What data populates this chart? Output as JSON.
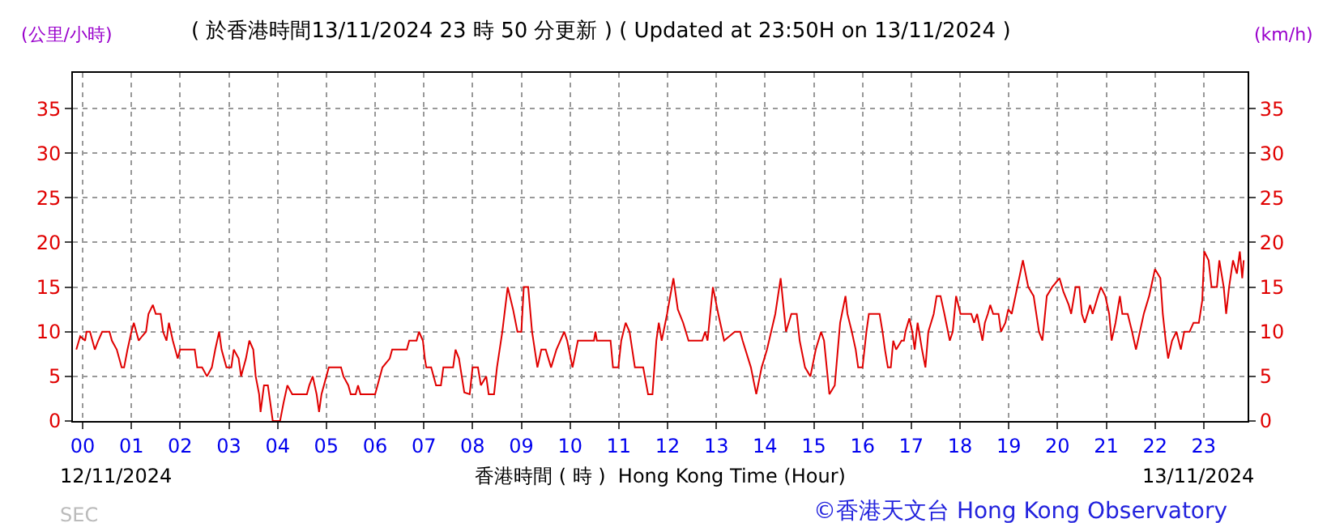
{
  "chart_data": {
    "type": "line",
    "title": "( 於香港時間13/11/2024 23 時 50 分更新 ) ( Updated at 23:50H on 13/11/2024 )",
    "xlabel": "香港時間 ( 時 )  Hong Kong Time (Hour)",
    "ylabel": "(公里/小時)",
    "y2label": "(km/h)",
    "annotations": [
      "12/11/2024",
      "13/11/2024",
      "SEC",
      "©香港天文台 Hong Kong Observatory"
    ],
    "xlim": [
      -0.2,
      23.9
    ],
    "xticks": [
      {
        "value": 0,
        "label": "00"
      },
      {
        "value": 1,
        "label": "01"
      },
      {
        "value": 2,
        "label": "02"
      },
      {
        "value": 3,
        "label": "03"
      },
      {
        "value": 4,
        "label": "04"
      },
      {
        "value": 5,
        "label": "05"
      },
      {
        "value": 6,
        "label": "06"
      },
      {
        "value": 7,
        "label": "07"
      },
      {
        "value": 8,
        "label": "08"
      },
      {
        "value": 9,
        "label": "09"
      },
      {
        "value": 10,
        "label": "10"
      },
      {
        "value": 11,
        "label": "11"
      },
      {
        "value": 12,
        "label": "12"
      },
      {
        "value": 13,
        "label": "13"
      },
      {
        "value": 14,
        "label": "14"
      },
      {
        "value": 15,
        "label": "15"
      },
      {
        "value": 16,
        "label": "16"
      },
      {
        "value": 17,
        "label": "17"
      },
      {
        "value": 18,
        "label": "18"
      },
      {
        "value": 19,
        "label": "19"
      },
      {
        "value": 20,
        "label": "20"
      },
      {
        "value": 21,
        "label": "21"
      },
      {
        "value": 22,
        "label": "22"
      },
      {
        "value": 23,
        "label": "23"
      }
    ],
    "ylim": [
      0,
      39
    ],
    "yticks": [
      0,
      5,
      10,
      15,
      20,
      25,
      30,
      35
    ],
    "y2lim": [
      0,
      39
    ],
    "y2ticks": [
      0,
      5,
      10,
      15,
      20,
      25,
      30,
      35
    ],
    "grid": true,
    "marker": "none",
    "line_style": "solid",
    "series": [
      {
        "color": "#e00000",
        "x": [
          -0.13,
          -0.05,
          0.05,
          0.08,
          0.15,
          0.2,
          0.25,
          0.32,
          0.4,
          0.55,
          0.6,
          0.7,
          0.75,
          0.8,
          0.85,
          0.92,
          1.0,
          1.05,
          1.1,
          1.15,
          1.22,
          1.3,
          1.35,
          1.44,
          1.5,
          1.6,
          1.65,
          1.72,
          1.77,
          1.85,
          1.9,
          1.95,
          2.0,
          2.3,
          2.35,
          2.45,
          2.55,
          2.65,
          2.72,
          2.8,
          2.85,
          2.95,
          3.05,
          3.1,
          3.2,
          3.25,
          3.35,
          3.42,
          3.5,
          3.55,
          3.62,
          3.65,
          3.72,
          3.8,
          3.85,
          3.9,
          3.95,
          4.05,
          4.12,
          4.2,
          4.3,
          4.6,
          4.65,
          4.72,
          4.8,
          4.85,
          4.9,
          5.0,
          5.05,
          5.3,
          5.35,
          5.45,
          5.5,
          5.6,
          5.65,
          5.7,
          6.0,
          6.05,
          6.15,
          6.3,
          6.35,
          6.65,
          6.7,
          6.85,
          6.9,
          6.98,
          7.02,
          7.05,
          7.15,
          7.25,
          7.35,
          7.4,
          7.6,
          7.65,
          7.72,
          7.83,
          7.94,
          8.0,
          8.11,
          8.17,
          8.28,
          8.33,
          8.44,
          8.5,
          8.61,
          8.72,
          8.83,
          8.92,
          9.0,
          9.05,
          9.14,
          9.22,
          9.33,
          9.41,
          9.5,
          9.61,
          9.72,
          9.88,
          9.94,
          10.05,
          10.16,
          10.49,
          10.52,
          10.55,
          10.83,
          10.88,
          10.99,
          11.05,
          11.14,
          11.22,
          11.33,
          11.5,
          11.6,
          11.69,
          11.77,
          11.82,
          11.88,
          11.99,
          12.12,
          12.21,
          12.32,
          12.43,
          12.71,
          12.77,
          12.82,
          12.93,
          13.04,
          13.16,
          13.38,
          13.49,
          13.54,
          13.71,
          13.82,
          13.93,
          14.04,
          14.21,
          14.32,
          14.43,
          14.54,
          14.65,
          14.71,
          14.82,
          14.93,
          15.04,
          15.15,
          15.21,
          15.32,
          15.43,
          15.54,
          15.65,
          15.69,
          15.78,
          15.86,
          15.91,
          16.0,
          16.08,
          16.13,
          16.35,
          16.41,
          16.46,
          16.52,
          16.58,
          16.63,
          16.69,
          16.8,
          16.85,
          16.88,
          16.96,
          17.02,
          17.07,
          17.13,
          17.22,
          17.29,
          17.35,
          17.46,
          17.52,
          17.6,
          17.68,
          17.79,
          17.85,
          17.92,
          18.01,
          18.23,
          18.29,
          18.35,
          18.46,
          18.51,
          18.57,
          18.62,
          18.68,
          18.79,
          18.84,
          18.93,
          18.99,
          19.06,
          19.29,
          19.4,
          19.51,
          19.62,
          19.69,
          19.78,
          19.89,
          20.04,
          20.12,
          20.23,
          20.28,
          20.37,
          20.45,
          20.5,
          20.56,
          20.67,
          20.72,
          20.83,
          20.89,
          20.98,
          21.06,
          21.11,
          21.19,
          21.28,
          21.33,
          21.44,
          21.53,
          21.61,
          21.69,
          21.77,
          21.88,
          22.0,
          22.11,
          22.16,
          22.22,
          22.27,
          22.35,
          22.44,
          22.53,
          22.6,
          22.71,
          22.79,
          22.9,
          22.97,
          23.01,
          23.1,
          23.16,
          23.27,
          23.32,
          23.41,
          23.46,
          23.52,
          23.6,
          23.68,
          23.74,
          23.79,
          23.82
        ],
        "values": [
          8,
          9.5,
          9,
          10,
          10,
          9,
          8,
          9,
          10,
          10,
          9,
          8,
          7,
          6,
          6,
          8,
          10,
          11,
          10,
          9,
          9.5,
          10,
          12,
          13,
          12,
          12,
          10,
          9,
          11,
          9,
          8,
          7,
          8,
          8,
          6,
          6,
          5,
          6,
          8,
          10,
          8,
          6,
          6,
          8,
          7,
          5,
          7,
          9,
          8,
          5,
          3,
          1,
          4,
          4,
          2,
          0,
          0,
          0,
          2,
          4,
          3,
          3,
          4,
          5,
          3,
          1,
          3,
          5,
          6,
          6,
          5,
          4,
          3,
          3,
          4,
          3,
          3,
          4,
          6,
          7,
          8,
          8,
          9,
          9,
          10,
          9,
          7,
          6,
          6,
          4,
          4,
          6,
          6,
          8,
          7,
          3.2,
          3,
          6,
          6,
          4,
          5,
          3,
          3,
          6,
          10,
          15,
          12.5,
          10,
          10,
          15,
          15,
          10,
          6,
          8,
          8,
          6,
          8,
          10,
          9,
          6,
          9,
          9,
          10,
          9,
          9,
          6,
          6,
          9,
          11,
          10,
          6,
          6,
          3,
          3,
          9,
          11,
          9,
          12,
          16,
          12.5,
          11,
          9,
          9,
          10,
          9,
          15,
          12,
          9,
          10,
          10,
          9,
          6,
          3,
          6,
          8,
          12,
          16,
          10,
          12,
          12,
          9,
          6,
          5,
          8,
          10,
          9,
          3,
          4,
          11,
          14,
          12,
          10,
          8,
          6,
          6,
          10,
          12,
          12,
          10,
          8,
          6,
          6,
          9,
          8,
          9,
          9,
          10,
          11.5,
          10,
          8,
          11,
          8,
          6,
          10,
          12,
          14,
          14,
          12,
          9,
          10,
          14,
          12,
          12,
          11,
          12,
          9,
          11,
          12,
          13,
          12,
          12,
          10,
          11,
          12.5,
          12,
          18,
          15,
          14,
          10,
          9,
          14,
          15,
          16,
          14.5,
          13,
          12,
          15,
          15,
          12,
          11,
          13,
          12,
          14,
          15,
          14,
          12,
          9,
          11,
          14,
          12,
          12,
          10,
          8,
          10,
          12,
          14,
          17,
          16,
          12,
          9,
          7,
          9,
          10,
          8,
          10,
          10,
          11,
          11,
          13.5,
          19,
          18,
          15,
          15,
          18,
          15,
          12,
          15,
          18,
          16.5,
          19,
          16,
          18
        ]
      }
    ]
  }
}
